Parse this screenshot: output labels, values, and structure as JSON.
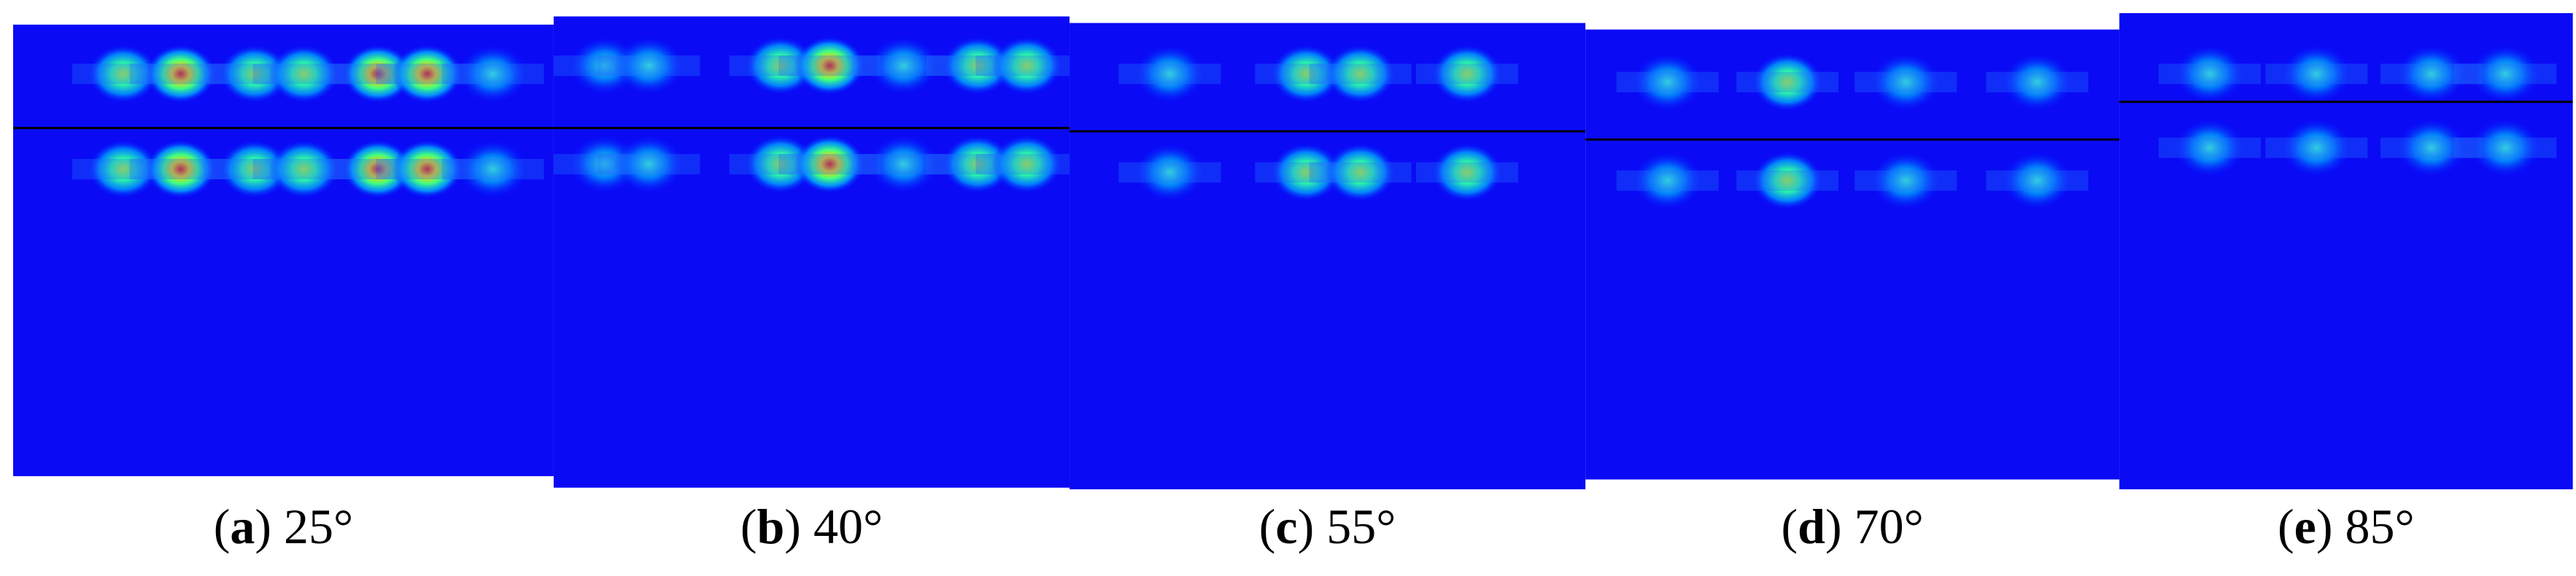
{
  "panels": [
    {
      "open": "(",
      "label": "a",
      "text": ") 25°"
    },
    {
      "open": "(",
      "label": "b",
      "text": ") 40°"
    },
    {
      "open": "(",
      "label": "c",
      "text": ") 55°"
    },
    {
      "open": "(",
      "label": "d",
      "text": ") 70°"
    },
    {
      "open": "(",
      "label": "e",
      "text": ") 85°"
    }
  ]
}
